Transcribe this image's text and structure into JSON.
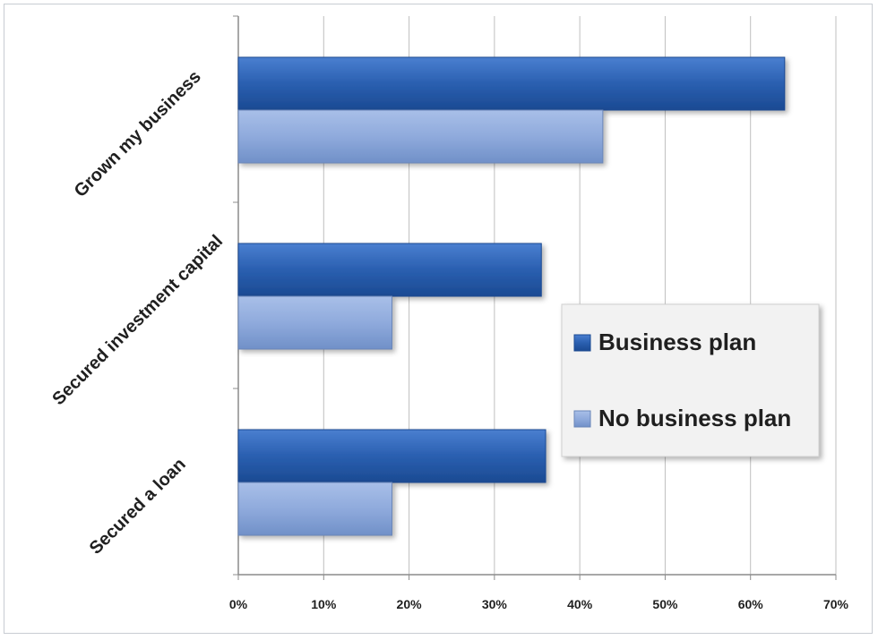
{
  "chart_data": {
    "type": "bar",
    "orientation": "horizontal",
    "categories": [
      "Grown my business",
      "Secured investment capital",
      "Secured a loan"
    ],
    "series": [
      {
        "name": "Business plan",
        "values": [
          64,
          35.5,
          36
        ],
        "color": "#2a5fb0"
      },
      {
        "name": "No business plan",
        "values": [
          42.7,
          18,
          18
        ],
        "color": "#8faadc"
      }
    ],
    "xlim": [
      0,
      70
    ],
    "x_ticks": [
      "0%",
      "10%",
      "20%",
      "30%",
      "40%",
      "50%",
      "60%",
      "70%"
    ],
    "tick_step": 10,
    "grid": true,
    "legend_position": "right"
  }
}
